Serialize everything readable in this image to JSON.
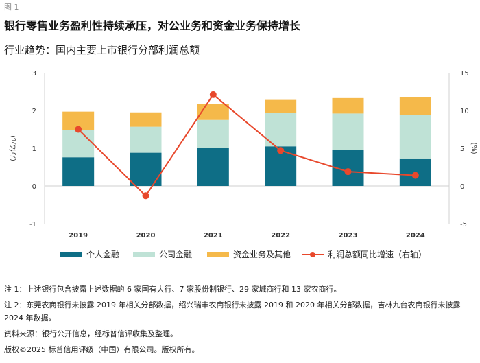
{
  "figure_label": "图 1",
  "title": "银行零售业务盈利性持续承压，对公业务和资金业务保持增长",
  "subtitle": "行业趋势：国内主要上市银行分部利润总额",
  "notes": [
    "注 1：上述银行包含披露上述数据的 6 家国有大行、7 家股份制银行、29 家城商行和 13 家农商行。",
    "注 2：东莞农商银行未披露 2019 年相关分部数据，绍兴瑞丰农商银行未披露 2019 和 2020 年相关分部数据，吉林九台农商银行未披露 2024 年数据。",
    "资料来源：银行公开信息，经标普信评收集及整理。",
    "版权©2025 标普信用评级（中国）有限公司。版权所有。"
  ],
  "chart_data": {
    "type": "bar",
    "stacked": true,
    "categories": [
      "2019",
      "2020",
      "2021",
      "2022",
      "2023",
      "2024"
    ],
    "series": [
      {
        "name": "个人金融",
        "color": "#0e6e86",
        "values": [
          0.76,
          0.88,
          1.0,
          1.05,
          0.96,
          0.73
        ]
      },
      {
        "name": "公司金融",
        "color": "#bfe2d6",
        "values": [
          0.73,
          0.69,
          0.75,
          0.89,
          0.96,
          1.15
        ]
      },
      {
        "name": "资金业务及其他",
        "color": "#f5b94a",
        "values": [
          0.48,
          0.38,
          0.43,
          0.34,
          0.41,
          0.48
        ]
      }
    ],
    "line_series": {
      "name": "利润总额同比增速（右轴）",
      "color": "#e8482c",
      "values": [
        7.5,
        -1.3,
        12.1,
        4.7,
        1.9,
        1.4
      ]
    },
    "ylabel_left": "(万亿元)",
    "ylabel_right": "(%)",
    "ylim_left": [
      -1,
      3
    ],
    "ylim_right": [
      -5,
      15
    ],
    "yticks_left": [
      "-1",
      "0",
      "1",
      "2",
      "3"
    ],
    "yticks_right": [
      "-5",
      "0",
      "5",
      "10",
      "15"
    ],
    "legend_position": "bottom"
  }
}
